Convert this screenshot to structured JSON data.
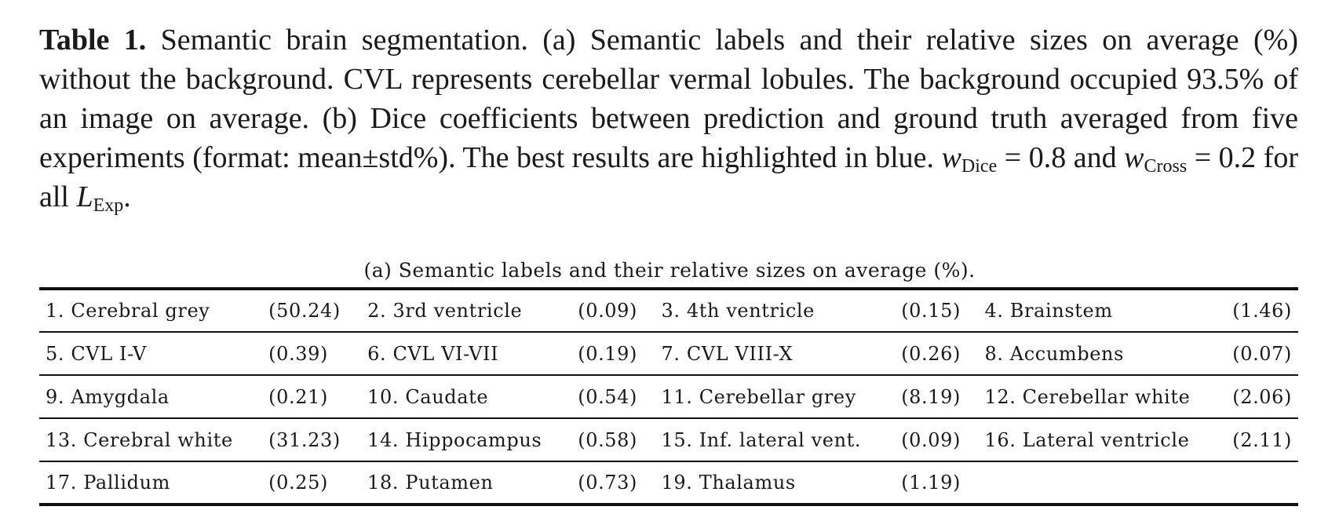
{
  "caption": {
    "lead": "Table 1.",
    "text_1": " Semantic brain segmentation. (a) Semantic labels and their relative sizes on average (%) without the background. CVL represents cerebellar vermal lobules. The background occupied 93.5% of an image on average. (b) Dice coefficients between prediction and ground truth averaged from five experiments (format: mean±std%). The best results are highlighted in blue. ",
    "w_symbol": "w",
    "dice_sub": "Dice",
    "text_2": " = 0.8 and ",
    "cross_sub": "Cross",
    "text_3": " = 0.2 for all ",
    "l_symbol": "L",
    "exp_sub": "Exp",
    "text_4": "."
  },
  "subtable": {
    "caption": "(a) Semantic labels and their relative sizes on average (%).",
    "rows": [
      [
        {
          "label": "1. Cerebral grey",
          "value": "(50.24)"
        },
        {
          "label": "2. 3rd ventricle",
          "value": "(0.09)"
        },
        {
          "label": "3. 4th ventricle",
          "value": "(0.15)"
        },
        {
          "label": "4. Brainstem",
          "value": "(1.46)"
        }
      ],
      [
        {
          "label": "5. CVL I-V",
          "value": "(0.39)"
        },
        {
          "label": "6. CVL VI-VII",
          "value": "(0.19)"
        },
        {
          "label": "7. CVL VIII-X",
          "value": "(0.26)"
        },
        {
          "label": "8. Accumbens",
          "value": "(0.07)"
        }
      ],
      [
        {
          "label": "9. Amygdala",
          "value": "(0.21)"
        },
        {
          "label": "10. Caudate",
          "value": "(0.54)"
        },
        {
          "label": "11. Cerebellar grey",
          "value": "(8.19)"
        },
        {
          "label": "12. Cerebellar white",
          "value": "(2.06)"
        }
      ],
      [
        {
          "label": "13. Cerebral white",
          "value": "(31.23)"
        },
        {
          "label": "14. Hippocampus",
          "value": "(0.58)"
        },
        {
          "label": "15. Inf. lateral vent.",
          "value": "(0.09)"
        },
        {
          "label": "16. Lateral ventricle",
          "value": "(2.11)"
        }
      ],
      [
        {
          "label": "17. Pallidum",
          "value": "(0.25)"
        },
        {
          "label": "18. Putamen",
          "value": "(0.73)"
        },
        {
          "label": "19. Thalamus",
          "value": "(1.19)"
        },
        {
          "label": "",
          "value": ""
        }
      ]
    ]
  }
}
